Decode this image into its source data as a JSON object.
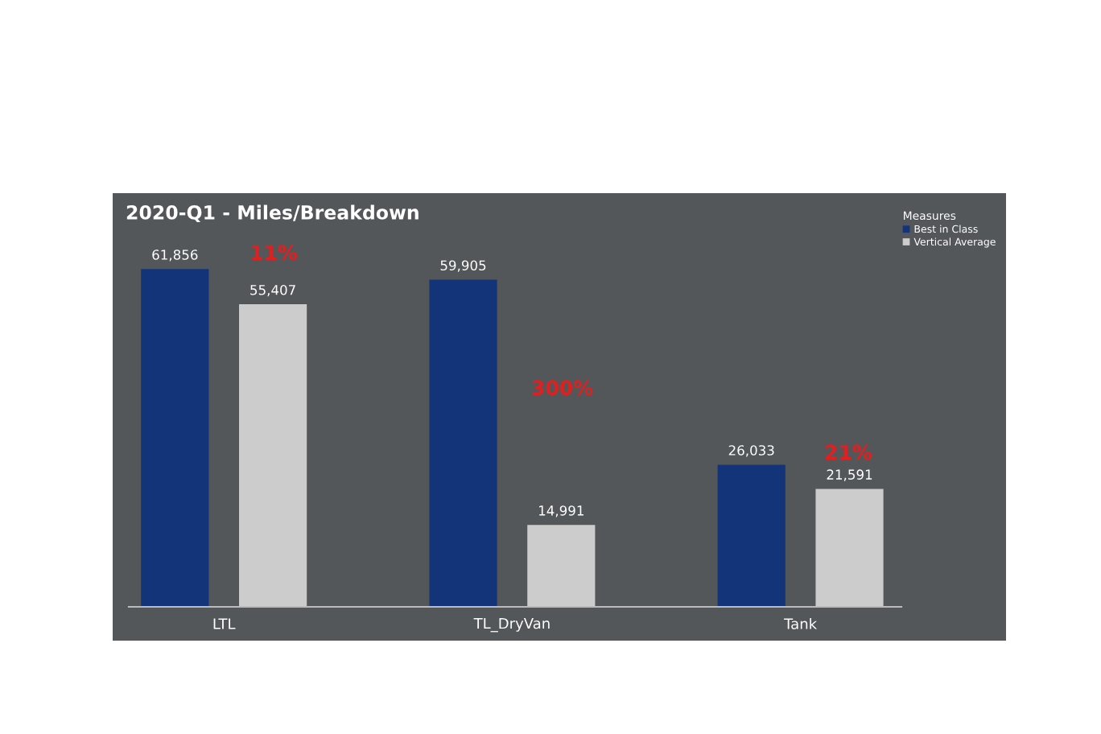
{
  "chart_data": {
    "type": "bar",
    "title": "2020-Q1 - Miles/Breakdown",
    "legend_title": "Measures",
    "categories": [
      "LTL",
      "TL_DryVan",
      "Tank"
    ],
    "series": [
      {
        "name": "Best in Class",
        "color": "#14347a",
        "values": [
          61856,
          59905,
          26033
        ],
        "value_labels": [
          "61,856",
          "59,905",
          "26,033"
        ]
      },
      {
        "name": "Vertical Average",
        "color": "#cccccc",
        "values": [
          55407,
          14991,
          21591
        ],
        "value_labels": [
          "55,407",
          "14,991",
          "21,591"
        ]
      }
    ],
    "legend": "top right",
    "annotations": [
      "11%",
      "300%",
      "21%"
    ]
  }
}
